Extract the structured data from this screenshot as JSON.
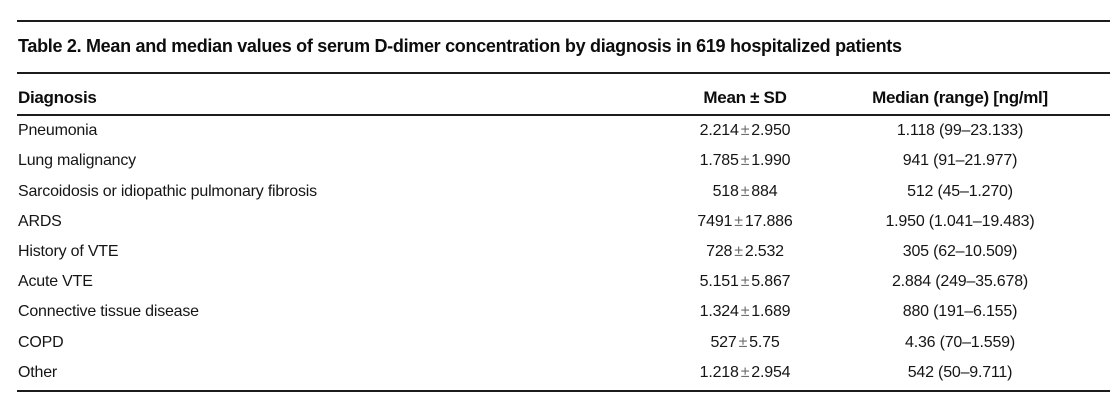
{
  "page": {
    "title": "Table 2. Mean and median values of serum D-dimer concentration by diagnosis in 619 hospitalized patients"
  },
  "table": {
    "columns": {
      "diagnosis": "Diagnosis",
      "mean_sd": "Mean ± SD",
      "median_range": "Median (range) [ng/ml]"
    },
    "symbols": {
      "plus_minus": "±"
    },
    "rows": [
      {
        "diagnosis": "Pneumonia",
        "mean": "2.214",
        "sd": "2.950",
        "median_range": "1.118 (99–23.133)"
      },
      {
        "diagnosis": "Lung malignancy",
        "mean": "1.785",
        "sd": "1.990",
        "median_range": "941 (91–21.977)"
      },
      {
        "diagnosis": "Sarcoidosis or idiopathic pulmonary fibrosis",
        "mean": "518",
        "sd": "884",
        "median_range": "512 (45–1.270)"
      },
      {
        "diagnosis": "ARDS",
        "mean": "7491",
        "sd": "17.886",
        "median_range": "1.950 (1.041–19.483)"
      },
      {
        "diagnosis": "History of VTE",
        "mean": "728",
        "sd": "2.532",
        "median_range": "305 (62–10.509)"
      },
      {
        "diagnosis": "Acute VTE",
        "mean": "5.151",
        "sd": "5.867",
        "median_range": "2.884 (249–35.678)"
      },
      {
        "diagnosis": "Connective tissue disease",
        "mean": "1.324",
        "sd": "1.689",
        "median_range": "880 (191–6.155)"
      },
      {
        "diagnosis": "COPD",
        "mean": "527",
        "sd": "5.75",
        "median_range": "4.36 (70–1.559)"
      },
      {
        "diagnosis": "Other",
        "mean": "1.218",
        "sd": "2.954",
        "median_range": "542 (50–9.711)"
      }
    ]
  }
}
